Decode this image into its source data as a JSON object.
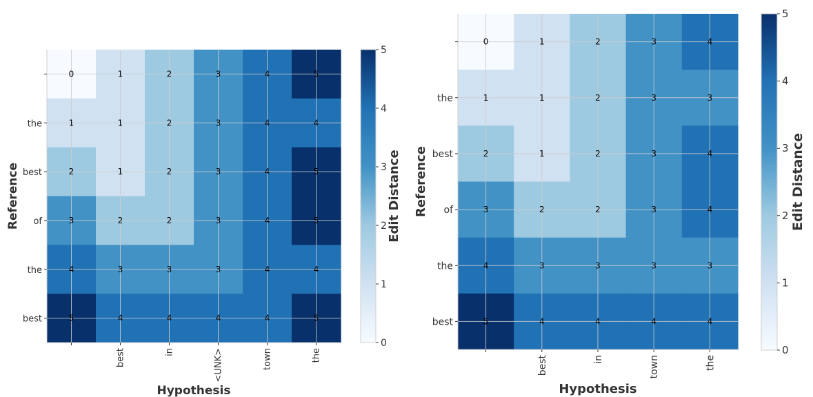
{
  "chart_data": [
    {
      "type": "heatmap",
      "title": "",
      "xlabel": "Hypothesis",
      "ylabel": "Reference",
      "x_categories": [
        "",
        "best",
        "in",
        "<UNK>",
        "town",
        "the"
      ],
      "y_categories": [
        "",
        "the",
        "best",
        "of",
        "the",
        "best"
      ],
      "values": [
        [
          0,
          1,
          2,
          3,
          4,
          5
        ],
        [
          1,
          1,
          2,
          3,
          4,
          4
        ],
        [
          2,
          1,
          2,
          3,
          4,
          5
        ],
        [
          3,
          2,
          2,
          3,
          4,
          5
        ],
        [
          4,
          3,
          3,
          3,
          4,
          4
        ],
        [
          5,
          4,
          4,
          4,
          4,
          5
        ]
      ],
      "colorbar": {
        "label": "Edit Distance",
        "range": [
          0,
          5
        ],
        "ticks": [
          "0",
          "1",
          "2",
          "3",
          "4",
          "5"
        ]
      },
      "colormap": "Blues",
      "grid": true
    },
    {
      "type": "heatmap",
      "title": "",
      "xlabel": "Hypothesis",
      "ylabel": "Reference",
      "x_categories": [
        "",
        "best",
        "in",
        "town",
        "the"
      ],
      "y_categories": [
        "",
        "the",
        "best",
        "of",
        "the",
        "best"
      ],
      "values": [
        [
          0,
          1,
          2,
          3,
          4
        ],
        [
          1,
          1,
          2,
          3,
          3
        ],
        [
          2,
          1,
          2,
          3,
          4
        ],
        [
          3,
          2,
          2,
          3,
          4
        ],
        [
          4,
          3,
          3,
          3,
          3
        ],
        [
          5,
          4,
          4,
          4,
          4
        ]
      ],
      "colorbar": {
        "label": "Edit Distance",
        "range": [
          0,
          5
        ],
        "ticks": [
          "0",
          "1",
          "2",
          "3",
          "4",
          "5"
        ]
      },
      "colormap": "Blues",
      "grid": true
    }
  ],
  "colors": {
    "scale": [
      "#f7fbff",
      "#d0e1f2",
      "#9ecae1",
      "#4292c6",
      "#2171b5",
      "#08306b"
    ],
    "grid": "#cccccc",
    "text": "#333333"
  }
}
